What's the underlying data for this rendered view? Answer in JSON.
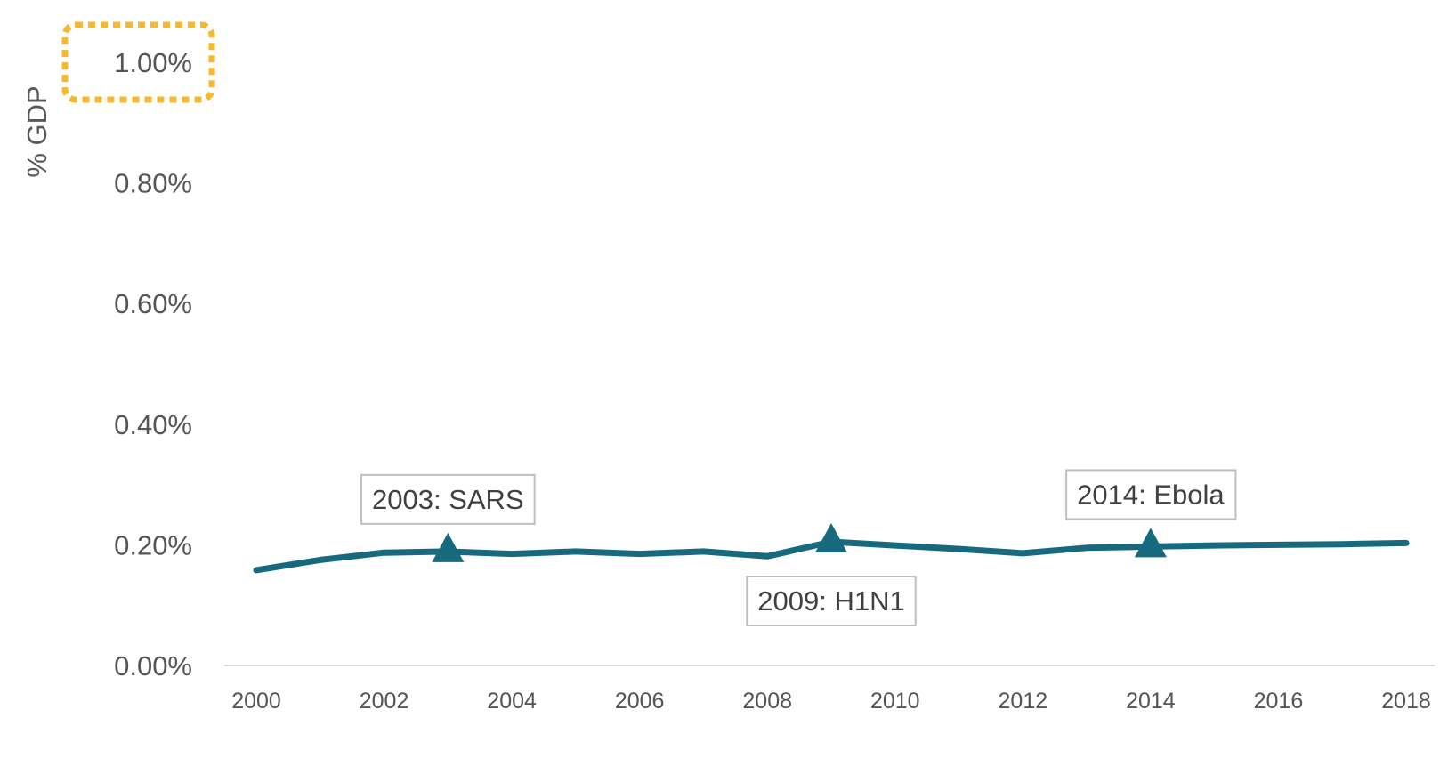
{
  "chart_data": {
    "type": "line",
    "title": "",
    "xlabel": "",
    "ylabel": "% GDP",
    "xlim": [
      2000,
      2018
    ],
    "ylim": [
      0,
      1.0
    ],
    "y_ticks": [
      "0.00%",
      "0.20%",
      "0.40%",
      "0.60%",
      "0.80%",
      "1.00%"
    ],
    "x_ticks": [
      "2000",
      "2002",
      "2004",
      "2006",
      "2008",
      "2010",
      "2012",
      "2014",
      "2016",
      "2018"
    ],
    "grid": false,
    "highlighted_tick": "1.00%",
    "highlight_color": "#F5B82E",
    "series": [
      {
        "color": "#176A7E",
        "x": [
          2000,
          2001,
          2002,
          2003,
          2004,
          2005,
          2006,
          2007,
          2008,
          2009,
          2010,
          2011,
          2012,
          2013,
          2014,
          2015,
          2016,
          2017,
          2018
        ],
        "y": [
          0.158,
          0.175,
          0.187,
          0.189,
          0.185,
          0.189,
          0.185,
          0.189,
          0.181,
          0.205,
          0.199,
          0.193,
          0.186,
          0.195,
          0.197,
          0.199,
          0.2,
          0.201,
          0.203
        ]
      }
    ],
    "annotations": [
      {
        "label": "2003: SARS",
        "x": 2003,
        "y": 0.189,
        "position": "above"
      },
      {
        "label": "2009: H1N1",
        "x": 2009,
        "y": 0.205,
        "position": "below"
      },
      {
        "label": "2014: Ebola",
        "x": 2014,
        "y": 0.197,
        "position": "above"
      }
    ]
  }
}
